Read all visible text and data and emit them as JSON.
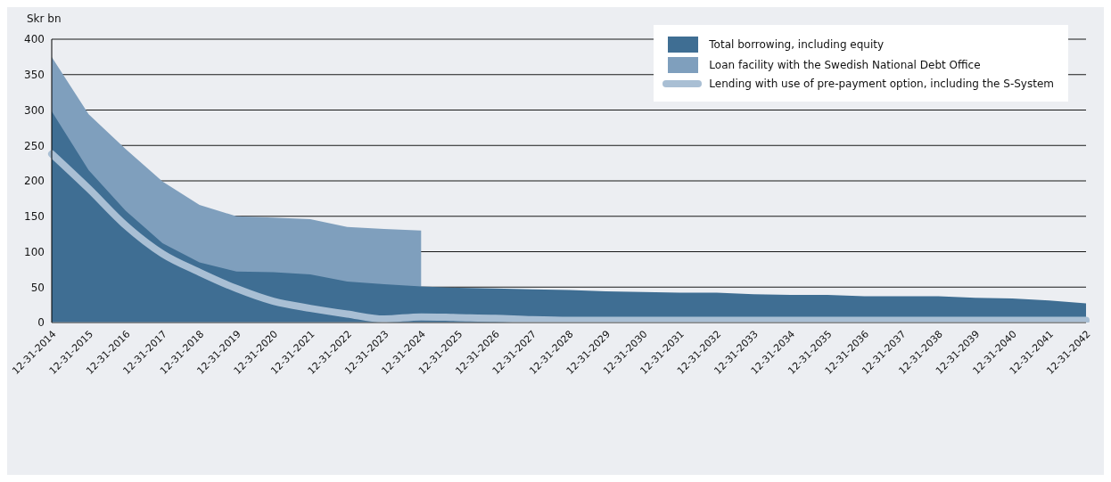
{
  "chart_data": {
    "type": "area",
    "ylabel": "Skr bn",
    "categories": [
      "12-31-2014",
      "12-31-2015",
      "12-31-2016",
      "12-31-2017",
      "12-31-2018",
      "12-31-2019",
      "12-31-2020",
      "12-31-2021",
      "12-31-2022",
      "12-31-2023",
      "12-31-2024",
      "12-31-2025",
      "12-31-2026",
      "12-31-2027",
      "12-31-2028",
      "12-31-2029",
      "12-31-2030",
      "12-31-2031",
      "12-31-2032",
      "12-31-2033",
      "12-31-2034",
      "12-31-2035",
      "12-31-2036",
      "12-31-2037",
      "12-31-2038",
      "12-31-2039",
      "12-31-2040",
      "12-31-2041",
      "12-31-2042"
    ],
    "series": [
      {
        "name": "Total borrowing, including equity",
        "color": "#3f6e93",
        "values": [
          298,
          215,
          158,
          112,
          85,
          72,
          71,
          68,
          58,
          54,
          51,
          49,
          48,
          47,
          46,
          44,
          43,
          42,
          42,
          40,
          39,
          39,
          37,
          37,
          37,
          35,
          34,
          31,
          27
        ]
      },
      {
        "name": "Loan facility with the Swedish National Debt Office",
        "color": "#7f9fbd",
        "values": [
          375,
          294,
          245,
          199,
          166,
          150,
          148,
          146,
          135,
          132,
          130,
          null,
          null,
          null,
          null,
          null,
          null,
          null,
          null,
          null,
          null,
          null,
          null,
          null,
          null,
          null,
          null,
          null,
          null
        ]
      },
      {
        "name": "Lending with use of pre-payment option, including the S-System",
        "type": "line",
        "color": "#a9bfd4",
        "values": [
          238,
          189,
          137,
          97,
          71,
          48,
          30,
          20,
          12,
          5,
          8,
          7,
          6,
          4,
          3,
          3,
          3,
          3,
          3,
          3,
          3,
          3,
          3,
          3,
          3,
          3,
          3,
          3,
          3
        ]
      }
    ],
    "ylim": [
      0,
      400
    ],
    "yticks": [
      0,
      50,
      100,
      150,
      200,
      250,
      300,
      350,
      400
    ],
    "grid": "y",
    "legend": "top right",
    "marker": "none"
  }
}
